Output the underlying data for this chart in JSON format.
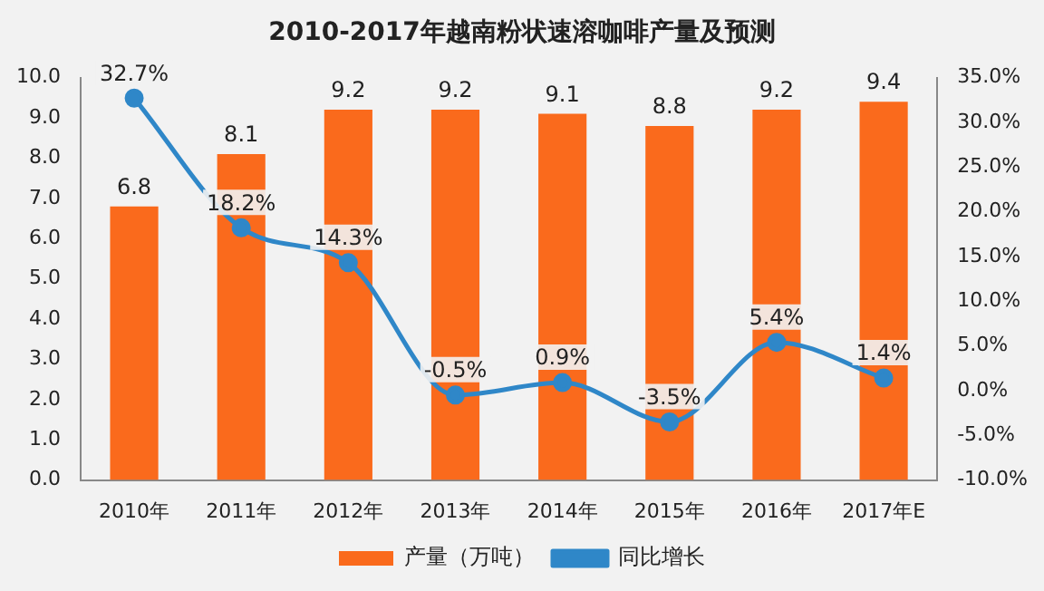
{
  "chart_data": {
    "type": "bar",
    "title": "2010-2017年越南粉状速溶咖啡产量及预测",
    "categories": [
      "2010年",
      "2011年",
      "2012年",
      "2013年",
      "2014年",
      "2015年",
      "2016年",
      "2017年E"
    ],
    "series": [
      {
        "name": "产量（万吨）",
        "color": "#fa6a1c",
        "values": [
          6.8,
          8.1,
          9.2,
          9.2,
          9.1,
          8.8,
          9.2,
          9.4
        ],
        "value_labels": [
          "6.8",
          "8.1",
          "9.2",
          "9.2",
          "9.1",
          "8.8",
          "9.2",
          "9.4"
        ]
      },
      {
        "name": "同比增长",
        "type": "line",
        "axis": "y2",
        "color": "#2f87c8",
        "values": [
          32.7,
          18.2,
          14.3,
          -0.5,
          0.9,
          -3.5,
          5.4,
          1.4
        ],
        "value_labels": [
          "32.7%",
          "18.2%",
          "14.3%",
          "-0.5%",
          "0.9%",
          "-3.5%",
          "5.4%",
          "1.4%"
        ]
      }
    ],
    "ylim": [
      0,
      10
    ],
    "yticks": [
      {
        "value": 0,
        "label": "0.0"
      },
      {
        "value": 1,
        "label": "1.0"
      },
      {
        "value": 2,
        "label": "2.0"
      },
      {
        "value": 3,
        "label": "3.0"
      },
      {
        "value": 4,
        "label": "4.0"
      },
      {
        "value": 5,
        "label": "5.0"
      },
      {
        "value": 6,
        "label": "6.0"
      },
      {
        "value": 7,
        "label": "7.0"
      },
      {
        "value": 8,
        "label": "8.0"
      },
      {
        "value": 9,
        "label": "9.0"
      },
      {
        "value": 10,
        "label": "10.0"
      }
    ],
    "y2lim": [
      -10,
      35
    ],
    "y2ticks": [
      {
        "value": -10,
        "label": "-10.0%"
      },
      {
        "value": -5,
        "label": "-5.0%"
      },
      {
        "value": 0,
        "label": "0.0%"
      },
      {
        "value": 5,
        "label": "5.0%"
      },
      {
        "value": 10,
        "label": "10.0%"
      },
      {
        "value": 15,
        "label": "15.0%"
      },
      {
        "value": 20,
        "label": "20.0%"
      },
      {
        "value": 25,
        "label": "25.0%"
      },
      {
        "value": 30,
        "label": "30.0%"
      },
      {
        "value": 35,
        "label": "35.0%"
      }
    ],
    "marker": "circle",
    "grid": false,
    "legend": "bottom"
  }
}
